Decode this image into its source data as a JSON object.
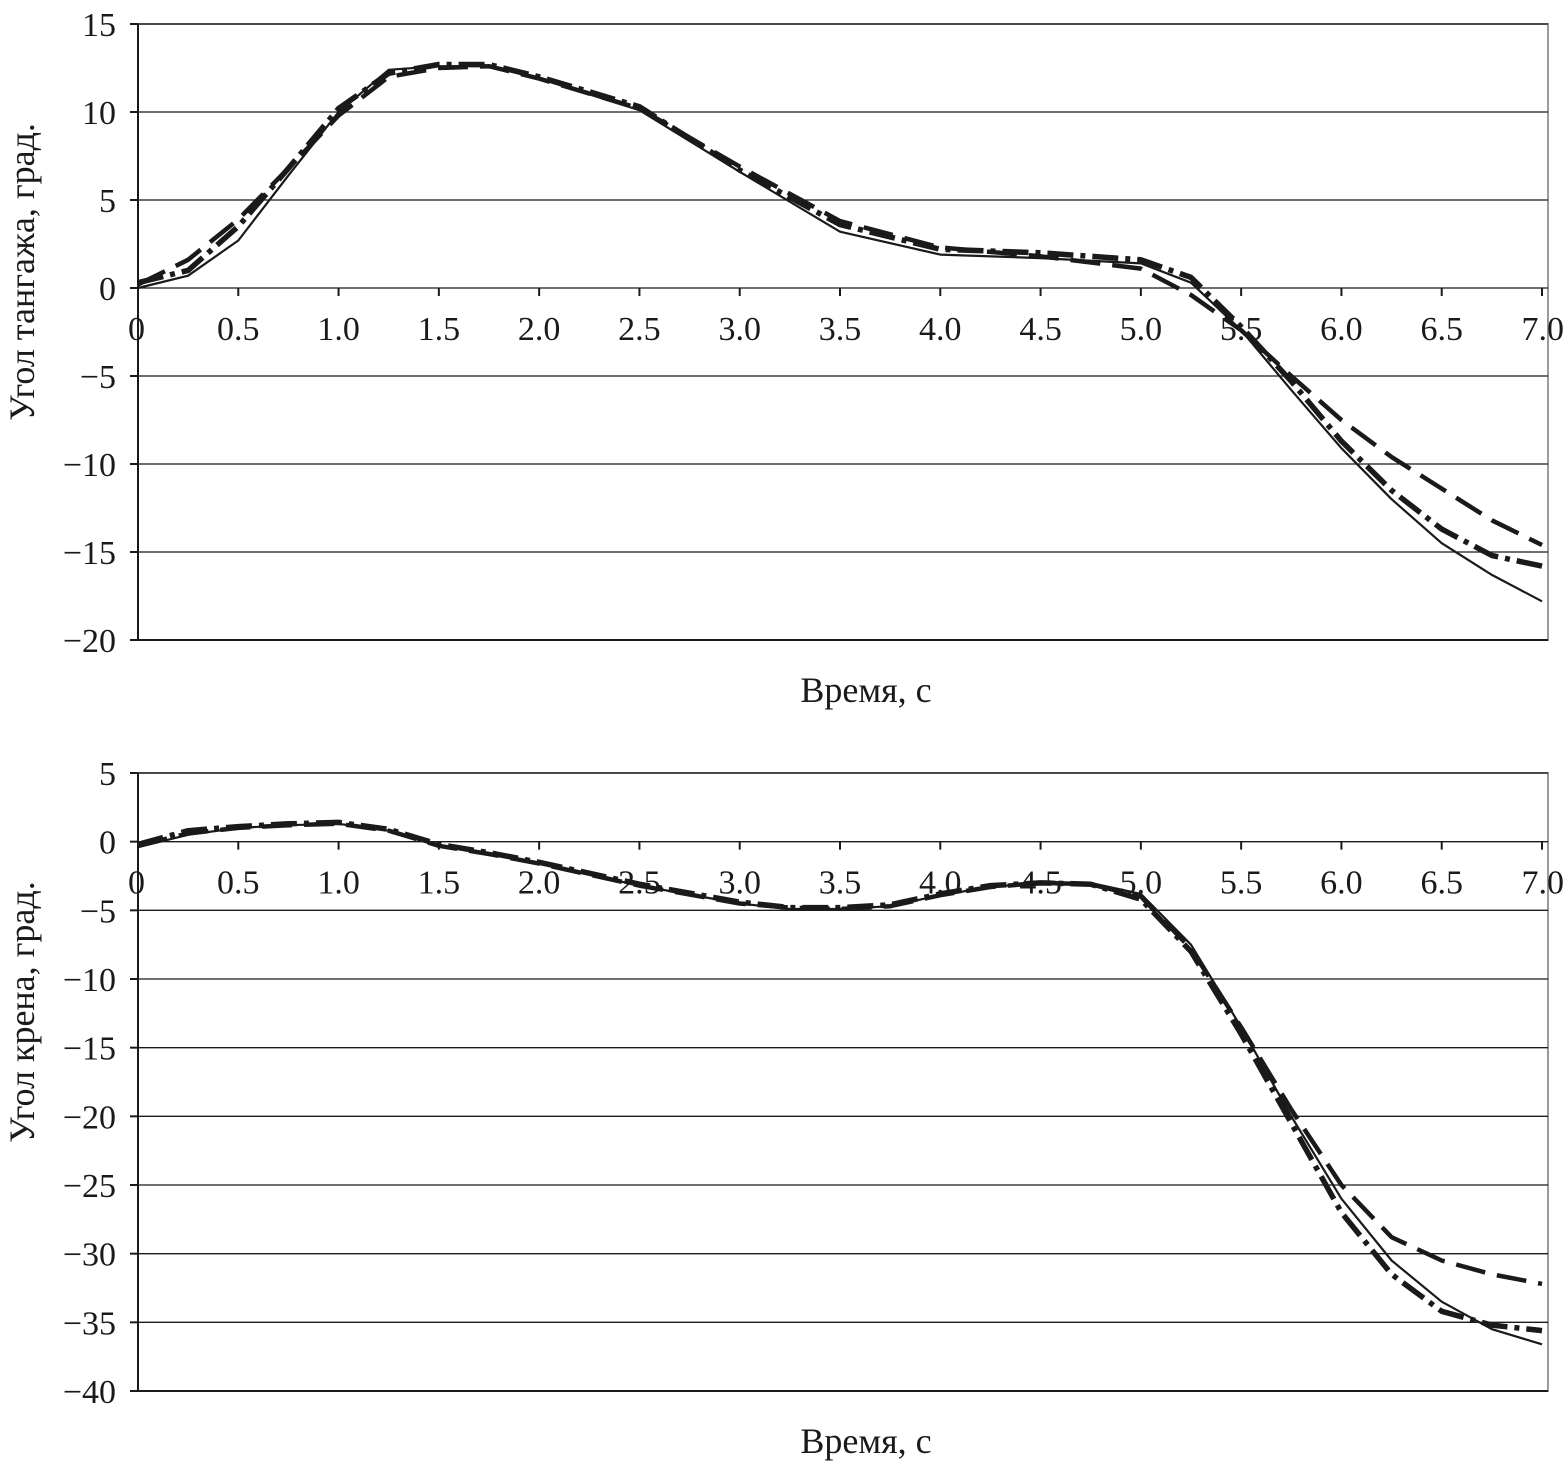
{
  "chart_data": [
    {
      "type": "line",
      "title": "",
      "xlabel": "Время, с",
      "ylabel": "Угол тангажа, град.",
      "xlim": [
        0,
        7.0
      ],
      "ylim": [
        -20,
        15
      ],
      "x_ticks": [
        "0",
        "0.5",
        "1.0",
        "1.5",
        "2.0",
        "2.5",
        "3.0",
        "3.5",
        "4.0",
        "4.5",
        "5.0",
        "5.5",
        "6.0",
        "6.5",
        "7.0"
      ],
      "y_ticks": [
        "15",
        "10",
        "5",
        "0",
        "−5",
        "−10",
        "−15",
        "−20"
      ],
      "grid": true,
      "legend": "none",
      "series": [
        {
          "style": "solid-thin",
          "x": [
            0,
            0.25,
            0.5,
            0.75,
            1.0,
            1.25,
            1.5,
            1.75,
            2.0,
            2.5,
            3.0,
            3.5,
            4.0,
            4.5,
            5.0,
            5.25,
            5.5,
            5.75,
            6.0,
            6.25,
            6.5,
            6.75,
            7.0
          ],
          "y": [
            0,
            0.7,
            2.7,
            6.4,
            10.0,
            12.4,
            12.6,
            12.6,
            11.9,
            10.1,
            6.6,
            3.2,
            1.9,
            1.7,
            1.4,
            0.3,
            -2.4,
            -5.8,
            -9.1,
            -12.0,
            -14.5,
            -16.3,
            -17.8
          ]
        },
        {
          "style": "dash-dot-thick",
          "x": [
            0,
            0.25,
            0.5,
            0.75,
            1.0,
            1.25,
            1.5,
            1.75,
            2.0,
            2.5,
            3.0,
            3.5,
            4.0,
            4.5,
            5.0,
            5.25,
            5.5,
            5.75,
            6.0,
            6.25,
            6.5,
            6.75,
            7.0
          ],
          "y": [
            0.3,
            1.0,
            3.5,
            6.8,
            10.2,
            12.2,
            12.7,
            12.7,
            12.0,
            10.3,
            6.7,
            3.6,
            2.2,
            2.0,
            1.6,
            0.6,
            -2.2,
            -5.3,
            -8.7,
            -11.5,
            -13.7,
            -15.2,
            -15.8
          ]
        },
        {
          "style": "dashed-long",
          "x": [
            0,
            0.25,
            0.5,
            0.75,
            1.0,
            1.25,
            1.5,
            1.75,
            2.0,
            2.5,
            3.0,
            3.5,
            4.0,
            4.5,
            5.0,
            5.25,
            5.5,
            5.75,
            6.0,
            6.25,
            6.5,
            6.75,
            7.0
          ],
          "y": [
            0.2,
            1.6,
            3.9,
            6.8,
            9.8,
            12.0,
            12.5,
            12.6,
            11.9,
            10.2,
            6.9,
            3.8,
            2.3,
            1.8,
            1.1,
            -0.4,
            -2.4,
            -5.0,
            -7.5,
            -9.6,
            -11.4,
            -13.2,
            -14.6
          ]
        }
      ]
    },
    {
      "type": "line",
      "title": "",
      "xlabel": "Время, с",
      "ylabel": "Угол крена, град.",
      "xlim": [
        0,
        7.0
      ],
      "ylim": [
        -40,
        5
      ],
      "x_ticks": [
        "0",
        "0.5",
        "1.0",
        "1.5",
        "2.0",
        "2.5",
        "3.0",
        "3.5",
        "4.0",
        "4.5",
        "5.0",
        "5.5",
        "6.0",
        "6.5",
        "7.0"
      ],
      "y_ticks": [
        "5",
        "0",
        "−5",
        "−10",
        "−15",
        "−20",
        "−25",
        "−30",
        "−35",
        "−40"
      ],
      "grid": true,
      "legend": "none",
      "series": [
        {
          "style": "solid-thin",
          "x": [
            0,
            0.25,
            0.5,
            0.75,
            1.0,
            1.25,
            1.5,
            1.75,
            2.0,
            2.5,
            3.0,
            3.25,
            3.5,
            3.75,
            4.0,
            4.25,
            4.5,
            4.75,
            5.0,
            5.25,
            5.5,
            5.75,
            6.0,
            6.25,
            6.5,
            6.75,
            7.0
          ],
          "y": [
            -0.4,
            0.5,
            1.0,
            1.2,
            1.3,
            0.8,
            -0.3,
            -0.9,
            -1.6,
            -3.2,
            -4.5,
            -4.9,
            -4.9,
            -4.7,
            -3.9,
            -3.3,
            -3.0,
            -3.0,
            -3.8,
            -7.5,
            -13.5,
            -20.0,
            -26.0,
            -30.5,
            -33.5,
            -35.5,
            -36.6
          ]
        },
        {
          "style": "dash-dot-thick",
          "x": [
            0,
            0.25,
            0.5,
            0.75,
            1.0,
            1.25,
            1.5,
            1.75,
            2.0,
            2.5,
            3.0,
            3.25,
            3.5,
            3.75,
            4.0,
            4.25,
            4.5,
            4.75,
            5.0,
            5.25,
            5.5,
            5.75,
            6.0,
            6.25,
            6.5,
            6.75,
            7.0
          ],
          "y": [
            -0.2,
            0.8,
            1.1,
            1.3,
            1.4,
            0.9,
            -0.2,
            -0.8,
            -1.5,
            -3.1,
            -4.4,
            -4.8,
            -4.8,
            -4.6,
            -3.8,
            -3.2,
            -3.0,
            -3.1,
            -4.2,
            -8.0,
            -14.0,
            -20.5,
            -27.0,
            -31.5,
            -34.2,
            -35.2,
            -35.6
          ]
        },
        {
          "style": "dashed-long",
          "x": [
            0,
            0.25,
            0.5,
            0.75,
            1.0,
            1.25,
            1.5,
            1.75,
            2.0,
            2.5,
            3.0,
            3.25,
            3.5,
            3.75,
            4.0,
            4.25,
            4.5,
            4.75,
            5.0,
            5.25,
            5.5,
            5.75,
            6.0,
            6.25,
            6.5,
            6.75,
            7.0
          ],
          "y": [
            -0.3,
            0.6,
            1.0,
            1.2,
            1.3,
            0.8,
            -0.3,
            -0.9,
            -1.6,
            -3.2,
            -4.5,
            -4.8,
            -4.9,
            -4.7,
            -3.9,
            -3.3,
            -3.0,
            -3.1,
            -4.0,
            -7.8,
            -13.5,
            -19.5,
            -25.0,
            -28.8,
            -30.5,
            -31.5,
            -32.2
          ]
        }
      ]
    }
  ]
}
